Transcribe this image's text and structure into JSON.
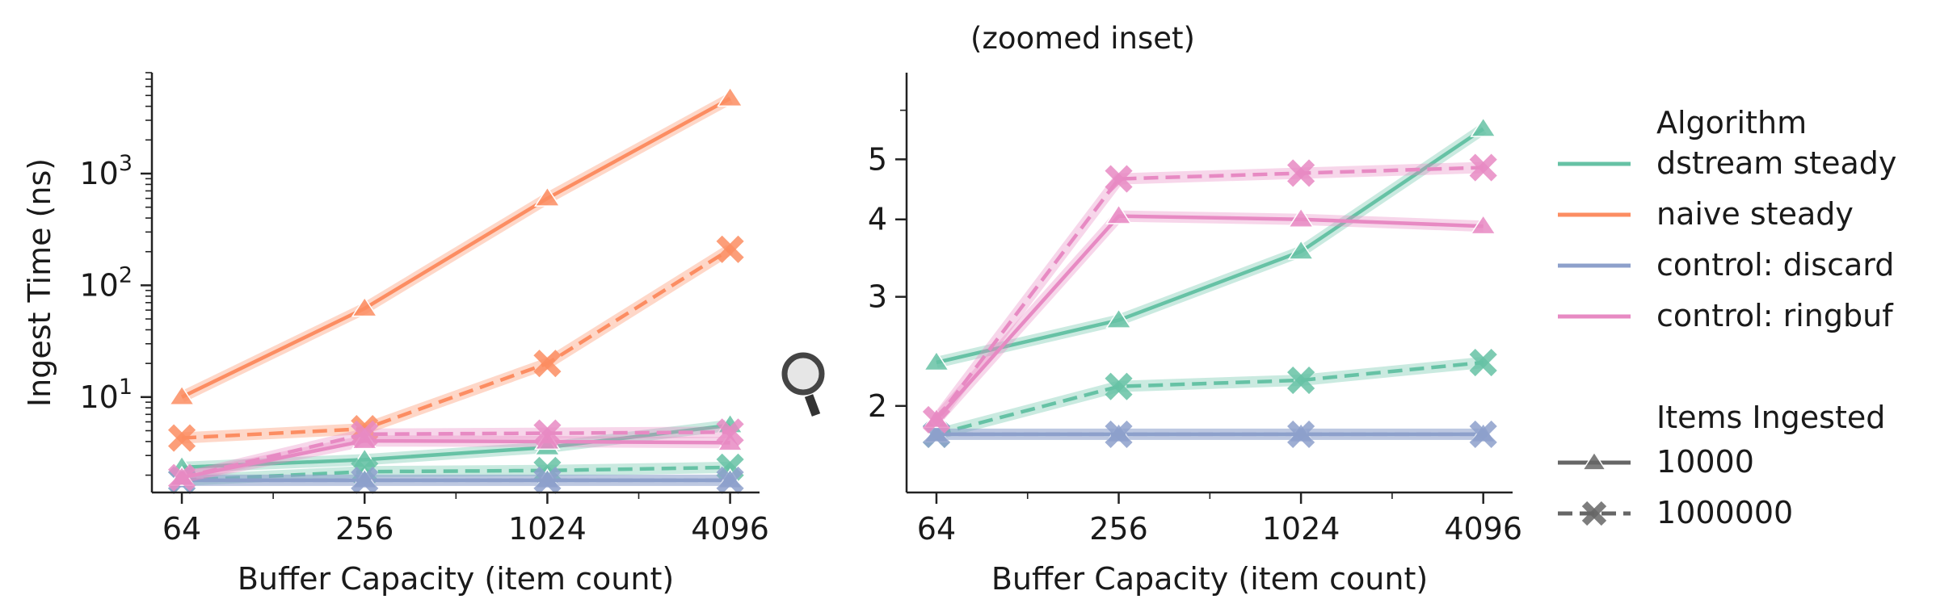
{
  "chart_data": [
    {
      "type": "line",
      "title": "",
      "xlabel": "Buffer Capacity (item count)",
      "ylabel": "Ingest Time (ns)",
      "xscale": "log2",
      "yscale": "log10",
      "x": [
        64,
        256,
        1024,
        4096
      ],
      "xticks": [
        "64",
        "256",
        "1024",
        "4096"
      ],
      "yticks": [
        {
          "base": "10",
          "exp": "1",
          "value": 10
        },
        {
          "base": "10",
          "exp": "2",
          "value": 100
        },
        {
          "base": "10",
          "exp": "3",
          "value": 1000
        }
      ],
      "ylim": [
        1.4,
        8000
      ],
      "series": [
        {
          "algorithm": "dstream steady",
          "items": "10000",
          "values": [
            2.35,
            2.75,
            3.55,
            5.6
          ]
        },
        {
          "algorithm": "dstream steady",
          "items": "1000000",
          "values": [
            1.8,
            2.15,
            2.2,
            2.35
          ]
        },
        {
          "algorithm": "naive steady",
          "items": "10000",
          "values": [
            10,
            62,
            600,
            4700
          ]
        },
        {
          "algorithm": "naive steady",
          "items": "1000000",
          "values": [
            4.3,
            5.2,
            20,
            210
          ]
        },
        {
          "algorithm": "control: discard",
          "items": "10000",
          "values": [
            1.8,
            1.8,
            1.8,
            1.8
          ]
        },
        {
          "algorithm": "control: discard",
          "items": "1000000",
          "values": [
            1.8,
            1.8,
            1.8,
            1.8
          ]
        },
        {
          "algorithm": "control: ringbuf",
          "items": "10000",
          "values": [
            1.9,
            4.05,
            4.0,
            3.9
          ]
        },
        {
          "algorithm": "control: ringbuf",
          "items": "1000000",
          "values": [
            1.9,
            4.65,
            4.75,
            4.85
          ]
        }
      ]
    },
    {
      "type": "line",
      "title": "(zoomed inset)",
      "xlabel": "Buffer Capacity (item count)",
      "ylabel": "",
      "xscale": "log2",
      "yscale": "log10",
      "x": [
        64,
        256,
        1024,
        4096
      ],
      "xticks": [
        "64",
        "256",
        "1024",
        "4096"
      ],
      "yticks": [
        {
          "label": "2",
          "value": 2
        },
        {
          "label": "3",
          "value": 3
        },
        {
          "label": "4",
          "value": 4
        },
        {
          "label": "5",
          "value": 5
        }
      ],
      "ylim": [
        1.45,
        6.9
      ],
      "series": [
        {
          "algorithm": "dstream steady",
          "items": "10000",
          "values": [
            2.35,
            2.75,
            3.55,
            5.6
          ]
        },
        {
          "algorithm": "dstream steady",
          "items": "1000000",
          "values": [
            1.8,
            2.15,
            2.2,
            2.35
          ]
        },
        {
          "algorithm": "control: discard",
          "items": "10000",
          "values": [
            1.8,
            1.8,
            1.8,
            1.8
          ]
        },
        {
          "algorithm": "control: discard",
          "items": "1000000",
          "values": [
            1.8,
            1.8,
            1.8,
            1.8
          ]
        },
        {
          "algorithm": "control: ringbuf",
          "items": "10000",
          "values": [
            1.9,
            4.05,
            4.0,
            3.9
          ]
        },
        {
          "algorithm": "control: ringbuf",
          "items": "1000000",
          "values": [
            1.9,
            4.65,
            4.75,
            4.85
          ]
        }
      ]
    }
  ],
  "legend": {
    "placement": "right",
    "algorithm_title": "Algorithm",
    "algorithms": [
      {
        "label": "dstream steady",
        "color": "#66c2a5"
      },
      {
        "label": "naive steady",
        "color": "#fc8d62"
      },
      {
        "label": "control: discard",
        "color": "#8da0cb"
      },
      {
        "label": "control: ringbuf",
        "color": "#e78ac3"
      }
    ],
    "items_title": "Items Ingested",
    "items": [
      {
        "label": "10000",
        "marker": "triangle",
        "dash": "solid"
      },
      {
        "label": "1000000",
        "marker": "x",
        "dash": "dashed"
      }
    ],
    "neutral_color": "#666666"
  },
  "zoom_icon": "magnifier-icon"
}
